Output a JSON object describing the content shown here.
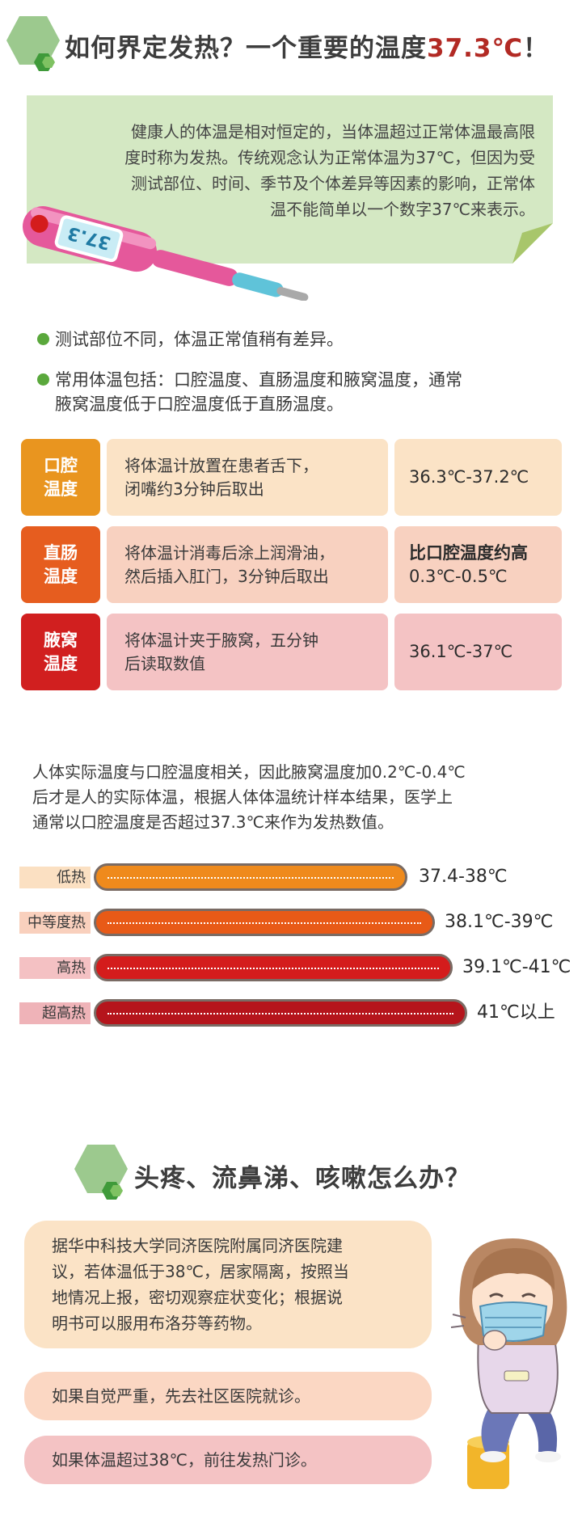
{
  "section1": {
    "title_main": "如何界定发热？一个重要的温度",
    "title_highlight": "37.3℃",
    "title_tail": "！",
    "intro_lines": [
      "健康人的体温是相对恒定的，当体温超过正常体温最高限",
      "度时称为发热。传统观念认为正常体温为37℃，但因为受",
      "测试部位、时间、季节及个体差异等因素的影响，正常体",
      "温不能简单以一个数字37℃来表示。"
    ],
    "thermometer_display": "37.3"
  },
  "bullets": [
    {
      "lines": [
        "测试部位不同，体温正常值稍有差异。"
      ]
    },
    {
      "lines": [
        "常用体温包括：口腔温度、直肠温度和腋窝温度，通常",
        "腋窝温度低于口腔温度低于直肠温度。"
      ]
    }
  ],
  "table": [
    {
      "label_lines": [
        "口腔",
        "温度"
      ],
      "desc_lines": [
        "将体温计放置在患者舌下，",
        "闭嘴约3分钟后取出"
      ],
      "value_lines": [
        "36.3℃-37.2℃"
      ],
      "label_color": "#e9951f",
      "desc_bg": "#fbe3c6",
      "value_bg": "#fbe3c6"
    },
    {
      "label_lines": [
        "直肠",
        "温度"
      ],
      "desc_lines": [
        "将体温计消毒后涂上润滑油，",
        "然后插入肛门，3分钟后取出"
      ],
      "value_lines": [
        "比口腔温度约高",
        "0.3℃-0.5℃"
      ],
      "label_color": "#e65d1f",
      "desc_bg": "#f8d1c0",
      "value_bg": "#f8d1c0"
    },
    {
      "label_lines": [
        "腋窝",
        "温度"
      ],
      "desc_lines": [
        "将体温计夹于腋窝，五分钟",
        "后读取数值"
      ],
      "value_lines": [
        "36.1℃-37℃"
      ],
      "label_color": "#d11f1f",
      "desc_bg": "#f4c3c4",
      "value_bg": "#f4c3c4"
    }
  ],
  "paragraph_lines": [
    "人体实际温度与口腔温度相关，因此腋窝温度加0.2℃-0.4℃",
    "后才是人的实际体温，根据人体体温统计样本结果，医学上",
    "通常以口腔温度是否超过37.3℃来作为发热数值。"
  ],
  "fever_levels": [
    {
      "label": "低热",
      "range": "37.4-38℃",
      "color": "#ef8a1c",
      "label_bg": "#fbe0c2"
    },
    {
      "label": "中等度热",
      "range": "38.1℃-39℃",
      "color": "#e85a17",
      "label_bg": "#f9d0bd"
    },
    {
      "label": "高热",
      "range": "39.1℃-41℃",
      "color": "#d41c1c",
      "label_bg": "#f4c1c3"
    },
    {
      "label": "超高热",
      "range": "41℃以上",
      "color": "#b5151c",
      "label_bg": "#efb3b8"
    }
  ],
  "section2": {
    "title": "头疼、流鼻涕、咳嗽怎么办？",
    "advice_lines": [
      "据华中科技大学同济医院附属同济医院建",
      "议，若体温低于38℃，居家隔离，按照当",
      "地情况上报，密切观察症状变化；根据说",
      "明书可以服用布洛芬等药物。"
    ],
    "severe": "如果自觉严重，先去社区医院就诊。",
    "over38": "如果体温超过38℃，前往发热门诊。"
  },
  "colors": {
    "green_hex": "#9cc98e",
    "green_dark": "#3f9a3a",
    "note_bg": "#d4e8c3",
    "accent_red": "#b22a24"
  }
}
